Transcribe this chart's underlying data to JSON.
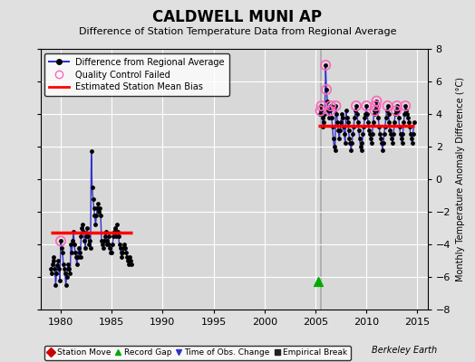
{
  "title": "CALDWELL MUNI AP",
  "subtitle": "Difference of Station Temperature Data from Regional Average",
  "ylabel": "Monthly Temperature Anomaly Difference (°C)",
  "xlim": [
    1978,
    2016
  ],
  "ylim": [
    -8,
    8
  ],
  "yticks": [
    -8,
    -6,
    -4,
    -2,
    0,
    2,
    4,
    6,
    8
  ],
  "xticks": [
    1980,
    1985,
    1990,
    1995,
    2000,
    2005,
    2010,
    2015
  ],
  "background_color": "#e0e0e0",
  "plot_bg_color": "#d8d8d8",
  "grid_color": "#ffffff",
  "segment1_bias": -3.3,
  "segment1_x_start": 1979.0,
  "segment1_x_end": 1987.0,
  "segment2_bias": 3.3,
  "segment2_x_start": 2005.3,
  "segment2_x_end": 2014.7,
  "vertical_line_x": 2005.5,
  "record_gap_x": 2005.3,
  "record_gap_y": -6.3,
  "early_x": [
    1979.0,
    1979.08,
    1979.17,
    1979.25,
    1979.33,
    1979.42,
    1979.5,
    1979.58,
    1979.67,
    1979.75,
    1979.83,
    1979.92,
    1980.0,
    1980.08,
    1980.17,
    1980.25,
    1980.33,
    1980.42,
    1980.5,
    1980.58,
    1980.67,
    1980.75,
    1980.83,
    1980.92,
    1981.0,
    1981.08,
    1981.17,
    1981.25,
    1981.33,
    1981.42,
    1981.5,
    1981.58,
    1981.67,
    1981.75,
    1981.83,
    1981.92,
    1982.0,
    1982.08,
    1982.17,
    1982.25,
    1982.33,
    1982.42,
    1982.5,
    1982.58,
    1982.67,
    1982.75,
    1982.83,
    1982.92,
    1983.0,
    1983.08,
    1983.17,
    1983.25,
    1983.33,
    1983.42,
    1983.5,
    1983.58,
    1983.67,
    1983.75,
    1983.83,
    1983.92,
    1984.0,
    1984.08,
    1984.17,
    1984.25,
    1984.33,
    1984.42,
    1984.5,
    1984.58,
    1984.67,
    1984.75,
    1984.83,
    1984.92,
    1985.0,
    1985.08,
    1985.17,
    1985.25,
    1985.33,
    1985.42,
    1985.5,
    1985.58,
    1985.67,
    1985.75,
    1985.83,
    1985.92,
    1986.0,
    1986.08,
    1986.17,
    1986.25,
    1986.33,
    1986.42,
    1986.5,
    1986.58,
    1986.67,
    1986.75,
    1986.83,
    1986.92
  ],
  "early_y": [
    -5.5,
    -5.8,
    -5.2,
    -4.8,
    -5.0,
    -5.5,
    -6.5,
    -5.8,
    -5.3,
    -5.0,
    -5.5,
    -6.2,
    -3.8,
    -4.2,
    -4.5,
    -5.2,
    -5.5,
    -5.8,
    -6.5,
    -6.0,
    -5.5,
    -5.2,
    -5.5,
    -5.8,
    -4.0,
    -4.5,
    -3.8,
    -3.2,
    -4.0,
    -4.5,
    -4.8,
    -5.2,
    -4.8,
    -4.2,
    -4.5,
    -4.8,
    -3.5,
    -3.0,
    -2.8,
    -3.2,
    -3.8,
    -4.2,
    -3.5,
    -3.0,
    -3.5,
    -4.0,
    -3.8,
    -4.2,
    1.7,
    -0.5,
    -1.2,
    -1.8,
    -2.2,
    -2.8,
    -2.2,
    -1.8,
    -1.5,
    -2.0,
    -1.8,
    -2.2,
    -3.8,
    -4.0,
    -4.2,
    -3.8,
    -3.5,
    -3.2,
    -4.0,
    -3.8,
    -3.5,
    -4.0,
    -4.2,
    -4.5,
    -4.5,
    -4.0,
    -3.5,
    -3.2,
    -3.0,
    -3.5,
    -2.8,
    -3.2,
    -3.5,
    -4.0,
    -4.2,
    -4.5,
    -4.8,
    -4.5,
    -4.2,
    -4.0,
    -4.2,
    -4.5,
    -4.8,
    -5.0,
    -5.2,
    -4.8,
    -5.0,
    -5.2
  ],
  "early_qc": [
    0,
    0,
    0,
    0,
    0,
    0,
    0,
    0,
    0,
    0,
    0,
    0,
    1,
    0,
    0,
    0,
    0,
    0,
    0,
    0,
    0,
    0,
    0,
    0,
    0,
    0,
    0,
    0,
    0,
    0,
    0,
    0,
    0,
    0,
    0,
    0,
    0,
    0,
    0,
    0,
    0,
    0,
    0,
    0,
    0,
    0,
    0,
    0,
    0,
    0,
    0,
    0,
    0,
    0,
    0,
    0,
    0,
    0,
    0,
    0,
    0,
    0,
    0,
    0,
    0,
    0,
    0,
    0,
    0,
    0,
    0,
    0,
    0,
    0,
    0,
    0,
    0,
    0,
    0,
    0,
    0,
    0,
    0,
    0,
    0,
    0,
    0,
    0,
    0,
    0,
    0,
    0,
    0,
    0,
    0,
    0
  ],
  "late_x": [
    2005.42,
    2005.5,
    2005.58,
    2005.67,
    2005.75,
    2005.83,
    2005.92,
    2006.0,
    2006.08,
    2006.17,
    2006.25,
    2006.33,
    2006.42,
    2006.5,
    2006.58,
    2006.67,
    2006.75,
    2006.83,
    2006.92,
    2007.0,
    2007.08,
    2007.17,
    2007.25,
    2007.33,
    2007.42,
    2007.5,
    2007.58,
    2007.67,
    2007.75,
    2007.83,
    2007.92,
    2008.0,
    2008.08,
    2008.17,
    2008.25,
    2008.33,
    2008.42,
    2008.5,
    2008.58,
    2008.67,
    2008.75,
    2008.83,
    2008.92,
    2009.0,
    2009.08,
    2009.17,
    2009.25,
    2009.33,
    2009.42,
    2009.5,
    2009.58,
    2009.67,
    2009.75,
    2009.83,
    2009.92,
    2010.0,
    2010.08,
    2010.17,
    2010.25,
    2010.33,
    2010.42,
    2010.5,
    2010.58,
    2010.67,
    2010.75,
    2010.83,
    2010.92,
    2011.0,
    2011.08,
    2011.17,
    2011.25,
    2011.33,
    2011.42,
    2011.5,
    2011.58,
    2011.67,
    2011.75,
    2011.83,
    2011.92,
    2012.0,
    2012.08,
    2012.17,
    2012.25,
    2012.33,
    2012.42,
    2012.5,
    2012.58,
    2012.67,
    2012.75,
    2012.83,
    2012.92,
    2013.0,
    2013.08,
    2013.17,
    2013.25,
    2013.33,
    2013.42,
    2013.5,
    2013.58,
    2013.67,
    2013.75,
    2013.83,
    2013.92,
    2014.0,
    2014.08,
    2014.17,
    2014.25,
    2014.33,
    2014.42,
    2014.5,
    2014.58,
    2014.67
  ],
  "late_y": [
    4.0,
    4.2,
    4.5,
    3.8,
    3.2,
    3.5,
    4.0,
    7.0,
    5.5,
    4.8,
    4.2,
    3.8,
    4.2,
    4.5,
    3.8,
    3.2,
    2.5,
    2.0,
    1.8,
    4.5,
    4.0,
    3.5,
    3.0,
    2.5,
    3.0,
    3.5,
    4.0,
    3.8,
    3.2,
    2.8,
    2.2,
    4.2,
    3.8,
    3.5,
    3.0,
    2.5,
    2.2,
    1.8,
    2.2,
    2.8,
    3.2,
    3.8,
    4.2,
    4.5,
    4.0,
    3.5,
    3.0,
    2.5,
    2.0,
    1.8,
    2.2,
    2.8,
    3.2,
    3.8,
    4.0,
    4.5,
    4.0,
    3.5,
    3.0,
    2.8,
    2.5,
    2.2,
    2.8,
    3.5,
    4.0,
    4.2,
    4.5,
    4.8,
    4.2,
    3.8,
    3.2,
    2.8,
    2.5,
    2.2,
    1.8,
    2.2,
    2.8,
    3.2,
    3.8,
    4.2,
    4.5,
    4.0,
    3.5,
    3.0,
    2.8,
    2.5,
    2.2,
    2.8,
    3.5,
    4.0,
    4.2,
    4.5,
    4.2,
    3.8,
    3.2,
    2.8,
    2.5,
    2.2,
    2.8,
    3.5,
    4.0,
    4.5,
    4.2,
    4.0,
    3.8,
    3.5,
    3.2,
    2.8,
    2.5,
    2.2,
    2.8,
    3.5
  ],
  "late_qc": [
    0,
    1,
    1,
    0,
    0,
    0,
    0,
    1,
    1,
    0,
    0,
    0,
    1,
    1,
    0,
    0,
    0,
    0,
    0,
    1,
    0,
    0,
    0,
    0,
    0,
    0,
    0,
    0,
    0,
    0,
    0,
    0,
    0,
    0,
    0,
    0,
    0,
    0,
    0,
    0,
    0,
    0,
    0,
    1,
    0,
    0,
    0,
    0,
    0,
    0,
    0,
    0,
    0,
    0,
    0,
    1,
    0,
    0,
    0,
    0,
    0,
    0,
    0,
    0,
    0,
    1,
    1,
    1,
    0,
    0,
    0,
    0,
    0,
    0,
    0,
    0,
    0,
    0,
    0,
    0,
    1,
    0,
    0,
    0,
    0,
    0,
    0,
    0,
    0,
    0,
    1,
    1,
    0,
    0,
    0,
    0,
    0,
    0,
    0,
    0,
    0,
    1,
    0,
    0,
    0,
    0,
    0,
    0,
    0,
    0,
    0,
    0
  ],
  "line_color": "#3333cc",
  "dot_color": "#000000",
  "qc_color": "#ff66bb",
  "bias_color": "#ff0000",
  "vline_color": "#aaaaaa",
  "berkeley_earth_text": "Berkeley Earth"
}
